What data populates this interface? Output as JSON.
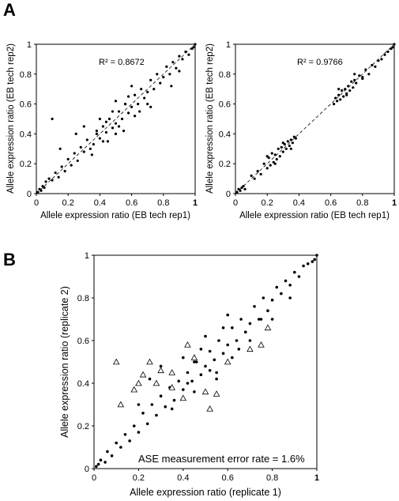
{
  "figure": {
    "panel_labels": [
      "A",
      "B"
    ]
  },
  "chart_data": [
    {
      "type": "scatter",
      "panel": "A",
      "title": "",
      "xlabel": "Allele expression ratio (EB tech rep1)",
      "ylabel": "Allele expression ratio (EB tech rep2)",
      "xlim": [
        0,
        1
      ],
      "ylim": [
        0,
        1
      ],
      "x_ticks": [
        "0",
        "0.2",
        "0.4",
        "0.6",
        "0.8",
        "1"
      ],
      "y_ticks": [
        "0",
        "0.2",
        "0.4",
        "0.6",
        "0.8",
        "1"
      ],
      "grid": false,
      "annotation": "R² = 0.8672",
      "r_squared": 0.8672,
      "diagonal": {
        "style": "dashed",
        "from": [
          0,
          0
        ],
        "to": [
          1,
          1
        ]
      },
      "series": [
        {
          "marker": "filled-circle",
          "color": "#000000",
          "x": [
            0.01,
            0.02,
            0.03,
            0.04,
            0.05,
            0.06,
            0.08,
            0.1,
            0.12,
            0.14,
            0.16,
            0.18,
            0.2,
            0.22,
            0.24,
            0.26,
            0.28,
            0.3,
            0.32,
            0.34,
            0.36,
            0.38,
            0.4,
            0.42,
            0.44,
            0.46,
            0.48,
            0.5,
            0.52,
            0.54,
            0.56,
            0.58,
            0.6,
            0.62,
            0.64,
            0.66,
            0.68,
            0.7,
            0.72,
            0.74,
            0.76,
            0.78,
            0.8,
            0.82,
            0.84,
            0.86,
            0.88,
            0.9,
            0.92,
            0.94,
            0.96,
            0.98,
            0.99,
            1.0,
            0.3,
            0.35,
            0.4,
            0.45,
            0.5,
            0.55,
            0.6,
            0.65,
            0.7,
            0.38,
            0.42,
            0.48,
            0.52,
            0.58,
            0.62,
            0.44,
            0.5,
            0.56,
            0.1,
            0.15,
            0.25,
            0.72,
            0.85,
            0.9
          ],
          "y": [
            0.01,
            0.03,
            0.02,
            0.05,
            0.04,
            0.08,
            0.1,
            0.09,
            0.14,
            0.11,
            0.18,
            0.15,
            0.23,
            0.19,
            0.27,
            0.22,
            0.31,
            0.28,
            0.36,
            0.3,
            0.33,
            0.42,
            0.37,
            0.45,
            0.41,
            0.5,
            0.44,
            0.47,
            0.55,
            0.5,
            0.6,
            0.54,
            0.58,
            0.66,
            0.6,
            0.7,
            0.64,
            0.68,
            0.76,
            0.7,
            0.8,
            0.74,
            0.78,
            0.85,
            0.8,
            0.88,
            0.84,
            0.92,
            0.9,
            0.95,
            0.93,
            0.97,
            0.98,
            1.0,
            0.45,
            0.26,
            0.5,
            0.35,
            0.62,
            0.42,
            0.72,
            0.55,
            0.6,
            0.4,
            0.35,
            0.55,
            0.45,
            0.65,
            0.52,
            0.48,
            0.4,
            0.6,
            0.5,
            0.3,
            0.4,
            0.58,
            0.72,
            0.82
          ]
        }
      ]
    },
    {
      "type": "scatter",
      "panel": "A",
      "title": "",
      "xlabel": "Allele expression ratio (EB tech rep1)",
      "ylabel": "Allele expression ratio (EB tech rep2)",
      "xlim": [
        0,
        1
      ],
      "ylim": [
        0,
        1
      ],
      "x_ticks": [
        "0",
        "0.2",
        "0.4",
        "0.6",
        "0.8",
        "1"
      ],
      "y_ticks": [
        "0",
        "0.2",
        "0.4",
        "0.6",
        "0.8",
        "1"
      ],
      "grid": false,
      "annotation": "R² = 0.9766",
      "r_squared": 0.9766,
      "diagonal": {
        "style": "dashed",
        "from": [
          0,
          0
        ],
        "to": [
          1,
          1
        ]
      },
      "series": [
        {
          "marker": "filled-circle",
          "color": "#000000",
          "x": [
            0.01,
            0.02,
            0.03,
            0.04,
            0.05,
            0.06,
            0.1,
            0.12,
            0.14,
            0.16,
            0.18,
            0.2,
            0.21,
            0.22,
            0.23,
            0.24,
            0.25,
            0.26,
            0.27,
            0.28,
            0.29,
            0.3,
            0.31,
            0.32,
            0.33,
            0.34,
            0.35,
            0.36,
            0.37,
            0.38,
            0.62,
            0.63,
            0.64,
            0.65,
            0.66,
            0.67,
            0.68,
            0.69,
            0.7,
            0.71,
            0.72,
            0.73,
            0.74,
            0.75,
            0.76,
            0.78,
            0.8,
            0.82,
            0.84,
            0.86,
            0.88,
            0.9,
            0.92,
            0.94,
            0.96,
            0.98,
            0.99,
            1.0,
            0.2,
            0.25,
            0.3,
            0.35,
            0.65,
            0.7,
            0.75,
            0.8
          ],
          "y": [
            0.01,
            0.03,
            0.02,
            0.04,
            0.05,
            0.03,
            0.12,
            0.1,
            0.15,
            0.13,
            0.2,
            0.17,
            0.24,
            0.19,
            0.27,
            0.21,
            0.26,
            0.23,
            0.3,
            0.25,
            0.31,
            0.28,
            0.33,
            0.3,
            0.35,
            0.32,
            0.36,
            0.34,
            0.38,
            0.37,
            0.6,
            0.64,
            0.62,
            0.66,
            0.63,
            0.69,
            0.65,
            0.7,
            0.67,
            0.72,
            0.69,
            0.75,
            0.71,
            0.76,
            0.74,
            0.79,
            0.78,
            0.83,
            0.8,
            0.86,
            0.85,
            0.89,
            0.9,
            0.93,
            0.95,
            0.97,
            0.98,
            1.0,
            0.25,
            0.2,
            0.34,
            0.3,
            0.7,
            0.66,
            0.8,
            0.77
          ]
        }
      ]
    },
    {
      "type": "scatter",
      "panel": "B",
      "title": "",
      "xlabel": "Allele expression ratio (replicate 1)",
      "ylabel": "Allele expression ratio (replicate 2)",
      "xlim": [
        0,
        1
      ],
      "ylim": [
        0,
        1
      ],
      "x_ticks": [
        "0",
        "0.2",
        "0.4",
        "0.6",
        "0.8",
        "1"
      ],
      "y_ticks": [
        "0",
        "0.2",
        "0.4",
        "0.6",
        "0.8",
        "1"
      ],
      "grid": false,
      "annotation": "ASE measurement error rate = 1.6%",
      "series": [
        {
          "marker": "filled-circle",
          "color": "#000000",
          "x": [
            0.01,
            0.02,
            0.03,
            0.05,
            0.06,
            0.08,
            0.1,
            0.12,
            0.14,
            0.16,
            0.18,
            0.2,
            0.22,
            0.24,
            0.26,
            0.28,
            0.3,
            0.32,
            0.34,
            0.36,
            0.38,
            0.4,
            0.42,
            0.44,
            0.46,
            0.48,
            0.5,
            0.52,
            0.54,
            0.56,
            0.58,
            0.6,
            0.62,
            0.64,
            0.66,
            0.68,
            0.7,
            0.72,
            0.74,
            0.76,
            0.78,
            0.8,
            0.82,
            0.84,
            0.86,
            0.88,
            0.9,
            0.92,
            0.94,
            0.96,
            0.98,
            0.99,
            1.0,
            0.3,
            0.35,
            0.4,
            0.45,
            0.5,
            0.55,
            0.6,
            0.65,
            0.7,
            0.75,
            0.42,
            0.48,
            0.52,
            0.58,
            0.62,
            0.45,
            0.55,
            0.2,
            0.25,
            0.8,
            0.88
          ],
          "y": [
            0.01,
            0.02,
            0.04,
            0.03,
            0.08,
            0.06,
            0.12,
            0.1,
            0.16,
            0.13,
            0.2,
            0.17,
            0.26,
            0.21,
            0.3,
            0.25,
            0.34,
            0.29,
            0.38,
            0.32,
            0.41,
            0.37,
            0.45,
            0.41,
            0.5,
            0.44,
            0.48,
            0.55,
            0.51,
            0.6,
            0.54,
            0.58,
            0.66,
            0.6,
            0.7,
            0.64,
            0.68,
            0.76,
            0.7,
            0.8,
            0.74,
            0.79,
            0.85,
            0.82,
            0.88,
            0.86,
            0.92,
            0.9,
            0.95,
            0.96,
            0.97,
            0.98,
            1.0,
            0.48,
            0.28,
            0.52,
            0.36,
            0.62,
            0.45,
            0.72,
            0.56,
            0.6,
            0.7,
            0.4,
            0.56,
            0.46,
            0.66,
            0.52,
            0.5,
            0.42,
            0.3,
            0.42,
            0.7,
            0.8
          ]
        },
        {
          "marker": "open-triangle",
          "color": "#000000",
          "x": [
            0.1,
            0.12,
            0.18,
            0.2,
            0.22,
            0.25,
            0.28,
            0.3,
            0.35,
            0.4,
            0.45,
            0.5,
            0.52,
            0.55,
            0.6,
            0.7,
            0.75,
            0.78,
            0.35,
            0.42
          ],
          "y": [
            0.5,
            0.3,
            0.37,
            0.4,
            0.44,
            0.5,
            0.4,
            0.46,
            0.45,
            0.33,
            0.52,
            0.36,
            0.28,
            0.35,
            0.5,
            0.56,
            0.58,
            0.66,
            0.38,
            0.58
          ]
        }
      ]
    }
  ]
}
